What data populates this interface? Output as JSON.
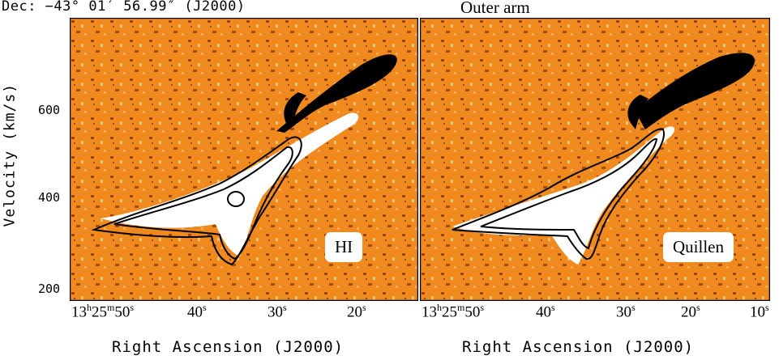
{
  "header": {
    "dec_label": "Dec: −43° 01′ 56.99″ (J2000)",
    "annotation": "Outer arm"
  },
  "axes": {
    "ylabel": "Velocity (km/s)",
    "yticks": [
      "600",
      "400",
      "200"
    ],
    "xlabel": "Right Ascension (J2000)"
  },
  "panels": [
    {
      "label": "HI",
      "xticks": [
        {
          "main": "13",
          "sup1": "h",
          "main2": "25",
          "sup2": "m",
          "main3": "50",
          "sup3": "s"
        },
        {
          "main": "40",
          "sup1": "s"
        },
        {
          "main": "30",
          "sup1": "s"
        },
        {
          "main": "20",
          "sup1": "s"
        }
      ]
    },
    {
      "label": "Quillen",
      "xticks": [
        {
          "main": "13",
          "sup1": "h",
          "main2": "25",
          "sup2": "m",
          "main3": "50",
          "sup3": "s"
        },
        {
          "main": "40",
          "sup1": "s"
        },
        {
          "main": "30",
          "sup1": "s"
        },
        {
          "main": "20",
          "sup1": "s"
        },
        {
          "main": "10",
          "sup1": "s"
        }
      ]
    }
  ],
  "colors": {
    "background_map": "#f08a1e",
    "emission": "#ffffff",
    "absorption": "#000000",
    "contour": "#000000"
  }
}
